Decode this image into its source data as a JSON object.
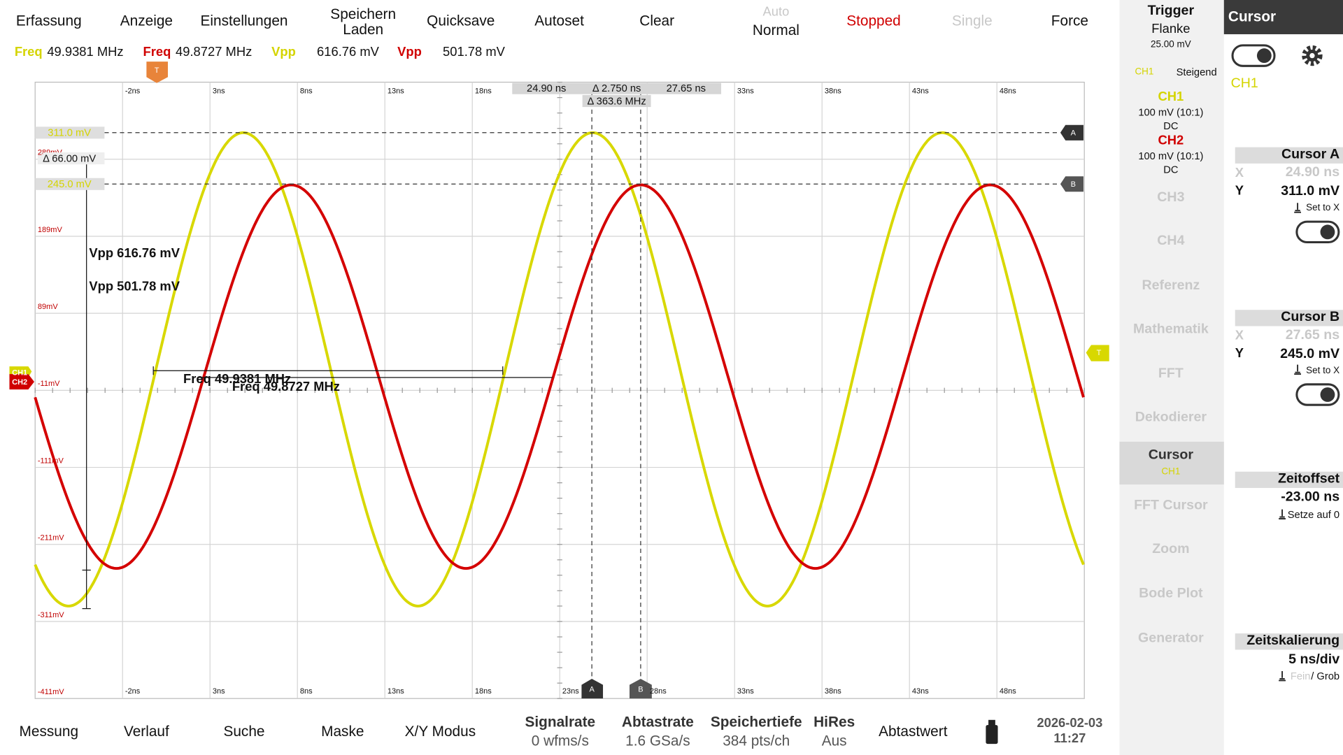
{
  "top_menu": {
    "acquire": "Erfassung",
    "display": "Anzeige",
    "settings": "Einstellungen",
    "save": [
      "Speichern",
      "Laden"
    ],
    "quicksave": "Quicksave",
    "autoset": "Autoset",
    "clear": "Clear",
    "trigger_mode": {
      "auto": "Auto",
      "normal": "Normal"
    },
    "run_state": "Stopped",
    "single": "Single",
    "force": "Force"
  },
  "measure_bar": [
    {
      "label": "Freq",
      "value": "49.9381 MHz"
    },
    {
      "label": "Freq",
      "value": "49.8727 MHz"
    },
    {
      "label": "Vpp",
      "value": "616.76 mV"
    },
    {
      "label": "Vpp",
      "value": "501.78 mV"
    }
  ],
  "plot": {
    "time_labels_top": [
      "-2ns",
      "3ns",
      "8ns",
      "13ns",
      "18ns",
      "33ns",
      "38ns",
      "43ns",
      "48ns"
    ],
    "time_labels_bottom": [
      "-2ns",
      "3ns",
      "8ns",
      "13ns",
      "18ns",
      "23ns",
      "28ns",
      "33ns",
      "38ns",
      "43ns",
      "48ns"
    ],
    "volt_labels": [
      "289mV",
      "189mV",
      "89mV",
      "-11mV",
      "-111mV",
      "-211mV",
      "-311mV",
      "-411mV"
    ],
    "cursor_time": {
      "a": "24.90 ns",
      "delta": "Δ 2.750 ns",
      "b": "27.65 ns",
      "freq": "Δ 363.6 MHz"
    },
    "cursor_volt": {
      "a": "311.0 mV",
      "delta": "Δ 66.00 mV",
      "b": "245.0 mV"
    },
    "markers": {
      "a": "A",
      "b": "B",
      "trigger": "T"
    },
    "channel_tags": [
      "CH1",
      "CH2"
    ],
    "annotations": {
      "vpp1": "Vpp 616.76 mV",
      "vpp2": "Vpp 501.78 mV",
      "freq1": "Freq 49.9381 MHz",
      "freq2": "Freq 49.8727 MHz"
    }
  },
  "channel_panel": {
    "trigger": {
      "title": "Trigger",
      "type": "Flanke",
      "level": "25.00 mV",
      "source": "CH1",
      "slope": "Steigend"
    },
    "ch1": {
      "name": "CH1",
      "scale": "100 mV (10:1)",
      "coupling": "DC"
    },
    "ch2": {
      "name": "CH2",
      "scale": "100 mV (10:1)",
      "coupling": "DC"
    },
    "items": [
      "CH3",
      "CH4",
      "Referenz",
      "Mathematik",
      "FFT",
      "Dekodierer"
    ],
    "active": {
      "name": "Cursor",
      "source": "CH1"
    },
    "items2": [
      "FFT Cursor",
      "Zoom",
      "Bode Plot",
      "Generator"
    ]
  },
  "cursor_panel": {
    "title": "Cursor",
    "source": "CH1",
    "cursor_a": {
      "title": "Cursor A",
      "x_label": "X",
      "x": "24.90 ns",
      "y_label": "Y",
      "y": "311.0 mV",
      "action": "Set to X"
    },
    "cursor_b": {
      "title": "Cursor B",
      "x_label": "X",
      "x": "27.65 ns",
      "y_label": "Y",
      "y": "245.0 mV",
      "action": "Set to X"
    },
    "time_offset": {
      "title": "Zeitoffset",
      "value": "-23.00 ns",
      "action": "Setze auf 0"
    },
    "time_scale": {
      "title": "Zeitskalierung",
      "value": "5 ns/div",
      "fine": "Fein",
      "coarse": "/ Grob"
    }
  },
  "bottom_bar": {
    "measure": "Messung",
    "history": "Verlauf",
    "search": "Suche",
    "mask": "Maske",
    "xy": "X/Y Modus",
    "signal_rate": {
      "label": "Signalrate",
      "value": "0 wfms/s"
    },
    "sample_rate": {
      "label": "Abtastrate",
      "value": "1.6 GSa/s"
    },
    "memory": {
      "label": "Speichertiefe",
      "value": "384 pts/ch"
    },
    "hires": {
      "label": "HiRes",
      "value": "Aus"
    },
    "sample": "Abtastwert",
    "date": "2026-02-03",
    "time": "11:27"
  }
}
